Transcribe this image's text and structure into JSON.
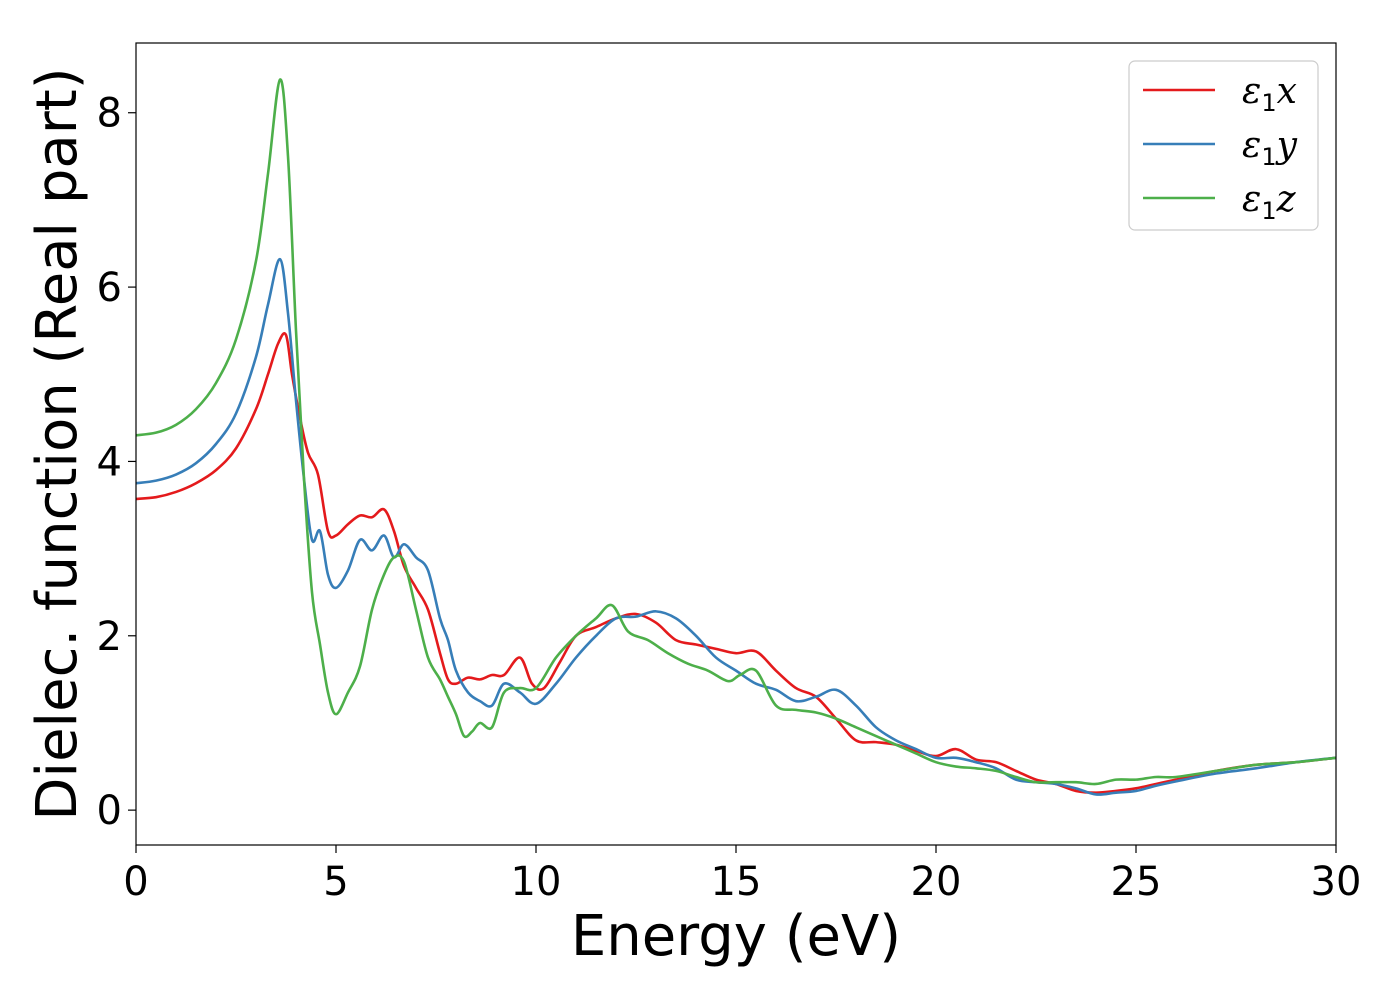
{
  "chart_data": {
    "type": "line",
    "title": "",
    "xlabel": "Energy (eV)",
    "ylabel": "Dielec. function (Real part)",
    "xlim": [
      0,
      30
    ],
    "ylim": [
      -0.4,
      8.8
    ],
    "xticks": [
      0,
      5,
      10,
      15,
      20,
      25,
      30
    ],
    "yticks": [
      0,
      2,
      4,
      6,
      8
    ],
    "grid": false,
    "legend_position": "top-right",
    "series": [
      {
        "name": "ε1x",
        "legend": {
          "symbol": "ε",
          "sub": "1",
          "axis": "x"
        },
        "color": "#e41a1c",
        "x": [
          0,
          0.5,
          1,
          1.5,
          2,
          2.5,
          3,
          3.3,
          3.55,
          3.75,
          3.9,
          4.1,
          4.3,
          4.55,
          4.8,
          5.0,
          5.3,
          5.6,
          5.9,
          6.2,
          6.45,
          6.7,
          7.0,
          7.3,
          7.6,
          7.8,
          8.0,
          8.3,
          8.6,
          8.9,
          9.2,
          9.6,
          9.9,
          10.2,
          10.6,
          11.0,
          11.5,
          12.0,
          12.5,
          13.0,
          13.5,
          14.0,
          14.5,
          15.0,
          15.5,
          16.0,
          16.5,
          17.0,
          17.5,
          18.0,
          18.5,
          19.0,
          19.5,
          20.0,
          20.5,
          21.0,
          21.5,
          22.0,
          22.5,
          23.0,
          23.5,
          24.0,
          24.5,
          25.0,
          25.5,
          26.0,
          27.0,
          28.0,
          29.0,
          30.0
        ],
        "y": [
          3.57,
          3.59,
          3.65,
          3.75,
          3.9,
          4.15,
          4.6,
          5.0,
          5.35,
          5.45,
          5.0,
          4.5,
          4.1,
          3.85,
          3.2,
          3.15,
          3.28,
          3.38,
          3.36,
          3.45,
          3.2,
          2.8,
          2.55,
          2.3,
          1.8,
          1.5,
          1.45,
          1.52,
          1.5,
          1.55,
          1.55,
          1.75,
          1.45,
          1.4,
          1.7,
          2.0,
          2.1,
          2.2,
          2.25,
          2.15,
          1.95,
          1.9,
          1.85,
          1.8,
          1.82,
          1.6,
          1.4,
          1.3,
          1.05,
          0.8,
          0.78,
          0.75,
          0.68,
          0.62,
          0.7,
          0.58,
          0.55,
          0.45,
          0.35,
          0.3,
          0.22,
          0.2,
          0.22,
          0.25,
          0.3,
          0.35,
          0.45,
          0.52,
          0.55,
          0.6
        ]
      },
      {
        "name": "ε1y",
        "legend": {
          "symbol": "ε",
          "sub": "1",
          "axis": "y"
        },
        "color": "#377eb8",
        "x": [
          0,
          0.5,
          1,
          1.5,
          2,
          2.5,
          3,
          3.3,
          3.6,
          3.8,
          4.0,
          4.2,
          4.4,
          4.6,
          4.8,
          5.0,
          5.3,
          5.6,
          5.9,
          6.2,
          6.45,
          6.7,
          7.0,
          7.3,
          7.6,
          7.8,
          8.0,
          8.3,
          8.6,
          8.9,
          9.2,
          9.6,
          10.0,
          10.5,
          11.0,
          11.5,
          12.0,
          12.5,
          13.0,
          13.5,
          14.0,
          14.5,
          15.0,
          15.5,
          16.0,
          16.5,
          17.0,
          17.5,
          18.0,
          18.5,
          19.0,
          19.5,
          20.0,
          20.5,
          21.0,
          21.5,
          22.0,
          22.5,
          23.0,
          23.5,
          24.0,
          24.5,
          25.0,
          25.5,
          26.0,
          27.0,
          28.0,
          29.0,
          30.0
        ],
        "y": [
          3.75,
          3.78,
          3.85,
          3.98,
          4.2,
          4.55,
          5.2,
          5.8,
          6.32,
          5.7,
          4.7,
          3.8,
          3.1,
          3.2,
          2.7,
          2.55,
          2.75,
          3.1,
          2.98,
          3.15,
          2.9,
          3.05,
          2.9,
          2.75,
          2.2,
          1.95,
          1.6,
          1.35,
          1.25,
          1.2,
          1.45,
          1.35,
          1.22,
          1.45,
          1.75,
          2.0,
          2.2,
          2.22,
          2.28,
          2.2,
          2.0,
          1.75,
          1.6,
          1.45,
          1.38,
          1.25,
          1.3,
          1.38,
          1.2,
          0.95,
          0.8,
          0.7,
          0.6,
          0.6,
          0.55,
          0.48,
          0.35,
          0.32,
          0.3,
          0.25,
          0.18,
          0.2,
          0.22,
          0.28,
          0.33,
          0.42,
          0.48,
          0.55,
          0.6
        ]
      },
      {
        "name": "ε1z",
        "legend": {
          "symbol": "ε",
          "sub": "1",
          "axis": "z"
        },
        "color": "#4daf4a",
        "x": [
          0,
          0.5,
          1,
          1.5,
          2,
          2.5,
          3,
          3.3,
          3.6,
          3.8,
          4.0,
          4.2,
          4.4,
          4.6,
          4.8,
          5.0,
          5.3,
          5.6,
          5.9,
          6.2,
          6.45,
          6.7,
          7.0,
          7.3,
          7.6,
          7.8,
          8.0,
          8.2,
          8.4,
          8.6,
          8.9,
          9.2,
          9.6,
          10.0,
          10.5,
          11.0,
          11.5,
          11.9,
          12.3,
          12.8,
          13.3,
          13.8,
          14.3,
          14.8,
          15.1,
          15.5,
          16.0,
          16.5,
          17.0,
          17.5,
          18.0,
          18.5,
          19.0,
          19.5,
          20.0,
          20.5,
          21.0,
          21.5,
          22.0,
          22.5,
          23.0,
          23.5,
          24.0,
          24.5,
          25.0,
          25.5,
          26.0,
          27.0,
          28.0,
          29.0,
          30.0
        ],
        "y": [
          4.3,
          4.33,
          4.42,
          4.6,
          4.9,
          5.4,
          6.3,
          7.3,
          8.38,
          7.5,
          5.5,
          3.8,
          2.5,
          1.9,
          1.35,
          1.1,
          1.35,
          1.65,
          2.3,
          2.7,
          2.9,
          2.85,
          2.3,
          1.75,
          1.5,
          1.3,
          1.1,
          0.85,
          0.9,
          1.0,
          0.95,
          1.35,
          1.4,
          1.4,
          1.75,
          2.0,
          2.2,
          2.35,
          2.05,
          1.95,
          1.8,
          1.68,
          1.6,
          1.48,
          1.55,
          1.6,
          1.2,
          1.15,
          1.12,
          1.05,
          0.95,
          0.85,
          0.75,
          0.65,
          0.55,
          0.5,
          0.48,
          0.45,
          0.38,
          0.32,
          0.32,
          0.32,
          0.3,
          0.35,
          0.35,
          0.38,
          0.38,
          0.45,
          0.52,
          0.55,
          0.6
        ]
      }
    ]
  }
}
